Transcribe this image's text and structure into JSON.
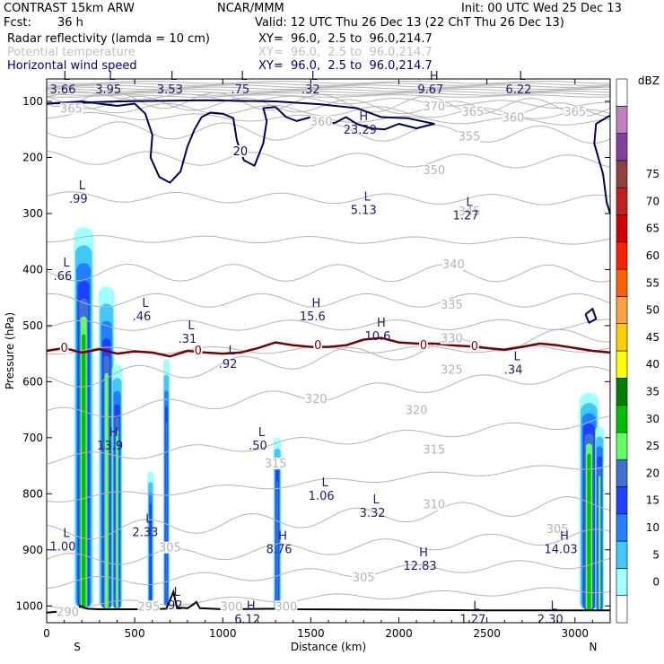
{
  "header": {
    "model": "CONTRAST 15km ARW",
    "org": "NCAR/MMM",
    "init": "Init: 00 UTC Wed 25 Dec 13",
    "fcst_label": "Fcst:",
    "fcst_value": "36 h",
    "valid": "Valid: 12 UTC Thu 26 Dec 13 (22 ChT Thu 26 Dec 13)",
    "fields": [
      {
        "name": "Radar reflectivity (lamda = 10 cm)",
        "xy": "XY=  96.0,  2.5 to  96.0,214.7",
        "color": "#000000"
      },
      {
        "name": "Potential temperature",
        "xy": "XY=  96.0,  2.5 to  96.0,214.7",
        "color": "#c0c0c0"
      },
      {
        "name": "Horizontal wind speed",
        "xy": "XY=  96.0,  2.5 to  96.0,214.7",
        "color": "#000080"
      }
    ]
  },
  "chart_data": {
    "type": "cross-section",
    "xlabel": "Distance (km)",
    "ylabel": "Pressure (hPa)",
    "xlim": [
      0,
      3200
    ],
    "ylim": [
      1030,
      60
    ],
    "x_ticks": [
      0,
      500,
      1000,
      1500,
      2000,
      2500,
      3000
    ],
    "y_ticks": [
      100,
      200,
      300,
      400,
      500,
      600,
      700,
      800,
      900,
      1000
    ],
    "end_labels": {
      "left": "S",
      "right": "N"
    },
    "colorbar": {
      "unit": "dBZ",
      "levels": [
        0,
        5,
        10,
        15,
        20,
        25,
        30,
        35,
        40,
        45,
        50,
        55,
        60,
        65,
        70,
        75
      ],
      "colors": [
        "#ffffff",
        "#a0ffff",
        "#40c8ff",
        "#2080ff",
        "#2040ff",
        "#4070d0",
        "#60ff60",
        "#00c000",
        "#008000",
        "#ffff00",
        "#ffd000",
        "#ffa040",
        "#ff6000",
        "#ff2000",
        "#d00000",
        "#c02020",
        "#904040",
        "#8040a0",
        "#c080c0",
        "#ffffff"
      ]
    },
    "theta_labels": [
      {
        "text": "365",
        "x": 140,
        "p": 112
      },
      {
        "text": "360",
        "x": 1560,
        "p": 135
      },
      {
        "text": "370",
        "x": 2200,
        "p": 108
      },
      {
        "text": "365",
        "x": 2420,
        "p": 118
      },
      {
        "text": "360",
        "x": 2650,
        "p": 128
      },
      {
        "text": "365",
        "x": 3000,
        "p": 118
      },
      {
        "text": "355",
        "x": 2400,
        "p": 162
      },
      {
        "text": "350",
        "x": 2200,
        "p": 222
      },
      {
        "text": "345",
        "x": 2400,
        "p": 295
      },
      {
        "text": "340",
        "x": 2310,
        "p": 390
      },
      {
        "text": "335",
        "x": 2300,
        "p": 462
      },
      {
        "text": "330",
        "x": 2300,
        "p": 522
      },
      {
        "text": "325",
        "x": 2300,
        "p": 578
      },
      {
        "text": "320",
        "x": 1530,
        "p": 630
      },
      {
        "text": "320",
        "x": 2100,
        "p": 650
      },
      {
        "text": "315",
        "x": 2200,
        "p": 720
      },
      {
        "text": "310",
        "x": 2200,
        "p": 818
      },
      {
        "text": "305",
        "x": 1800,
        "p": 948
      },
      {
        "text": "305",
        "x": 2900,
        "p": 862
      },
      {
        "text": "300",
        "x": 1050,
        "p": 1000
      },
      {
        "text": "305",
        "x": 700,
        "p": 895
      },
      {
        "text": "300",
        "x": 1360,
        "p": 1000
      },
      {
        "text": "295",
        "x": 580,
        "p": 1000
      },
      {
        "text": "290",
        "x": 120,
        "p": 1010
      },
      {
        "text": "315",
        "x": 1300,
        "p": 745
      }
    ],
    "wind_labels": [
      {
        "text": "20",
        "x": 1100,
        "p": 188
      }
    ],
    "zero_labels": [
      {
        "text": "0",
        "x": 100,
        "p": 540
      },
      {
        "text": "0",
        "x": 860,
        "p": 545
      },
      {
        "text": "0",
        "x": 1540,
        "p": 535
      },
      {
        "text": "0",
        "x": 2140,
        "p": 535
      },
      {
        "text": "0",
        "x": 2430,
        "p": 537
      }
    ],
    "extrema": [
      {
        "type": "L",
        "value": "3.66",
        "x": 0,
        "p": 65
      },
      {
        "type": "L",
        "value": "3.95",
        "x": 350,
        "p": 65
      },
      {
        "type": "L",
        "value": "3.53",
        "x": 700,
        "p": 65
      },
      {
        "type": "L",
        "value": ".75",
        "x": 1100,
        "p": 65
      },
      {
        "type": "L",
        "value": ".32",
        "x": 1500,
        "p": 65
      },
      {
        "type": "H",
        "value": "9.67",
        "x": 2180,
        "p": 65
      },
      {
        "type": "L",
        "value": "6.22",
        "x": 2680,
        "p": 65
      },
      {
        "type": "H",
        "value": "23.29",
        "x": 1780,
        "p": 137
      },
      {
        "type": "L",
        "value": ".99",
        "x": 180,
        "p": 260
      },
      {
        "type": "L",
        "value": "5.13",
        "x": 1800,
        "p": 280
      },
      {
        "type": "L",
        "value": "1.27",
        "x": 2380,
        "p": 290
      },
      {
        "type": "L",
        "value": ".66",
        "x": 80,
        "p": 398
      },
      {
        "type": "L",
        "value": ".46",
        "x": 540,
        "p": 470
      },
      {
        "type": "H",
        "value": "15.6",
        "x": 1510,
        "p": 470
      },
      {
        "type": "L",
        "value": ".31",
        "x": 800,
        "p": 510
      },
      {
        "type": "H",
        "value": "10.6",
        "x": 1880,
        "p": 505
      },
      {
        "type": "L",
        "value": ".92",
        "x": 1030,
        "p": 555
      },
      {
        "type": "L",
        "value": ".34",
        "x": 2650,
        "p": 565
      },
      {
        "type": "H",
        "value": "13.9",
        "x": 360,
        "p": 700
      },
      {
        "type": "L",
        "value": ".50",
        "x": 1200,
        "p": 700
      },
      {
        "type": "L",
        "value": "1.06",
        "x": 1560,
        "p": 790
      },
      {
        "type": "L",
        "value": "3.32",
        "x": 1850,
        "p": 820
      },
      {
        "type": "L",
        "value": "2.33",
        "x": 560,
        "p": 855
      },
      {
        "type": "L",
        "value": "1.00",
        "x": 90,
        "p": 880
      },
      {
        "type": "H",
        "value": "8.76",
        "x": 1320,
        "p": 885
      },
      {
        "type": "H",
        "value": "14.03",
        "x": 2920,
        "p": 885
      },
      {
        "type": "H",
        "value": "12.83",
        "x": 2120,
        "p": 915
      },
      {
        "type": "L",
        "value": ".92",
        "x": 720,
        "p": 985
      },
      {
        "type": "H",
        "value": "6.12",
        "x": 1140,
        "p": 1010
      },
      {
        "type": "L",
        "value": "1.27",
        "x": 2420,
        "p": 1010
      },
      {
        "type": "L",
        "value": "2.30",
        "x": 2860,
        "p": 1010
      }
    ],
    "zero_line": {
      "x": [
        0,
        100,
        200,
        300,
        400,
        500,
        600,
        700,
        800,
        900,
        1000,
        1100,
        1200,
        1300,
        1400,
        1500,
        1600,
        1700,
        1800,
        1900,
        2000,
        2100,
        2200,
        2300,
        2400,
        2500,
        2600,
        2700,
        2800,
        2900,
        3000,
        3100,
        3200
      ],
      "p": [
        545,
        540,
        548,
        542,
        550,
        546,
        548,
        555,
        545,
        548,
        550,
        548,
        540,
        530,
        535,
        538,
        538,
        535,
        525,
        522,
        530,
        532,
        532,
        535,
        537,
        540,
        543,
        538,
        532,
        535,
        540,
        545,
        548
      ]
    },
    "terrain": {
      "x": [
        0,
        150,
        190,
        230,
        300,
        400,
        600,
        680,
        700,
        720,
        740,
        800,
        830,
        850,
        870,
        1000,
        1300,
        1400,
        2000,
        2500,
        3000,
        3200
      ],
      "p": [
        1012,
        1008,
        1000,
        1005,
        1006,
        1006,
        1006,
        1005,
        990,
        975,
        1003,
        1004,
        998,
        993,
        1004,
        1006,
        1005,
        1006,
        1007,
        1008,
        1008,
        1008
      ]
    },
    "reflectivity_columns": [
      {
        "x": 210,
        "halfwidth": 55,
        "top": 325,
        "bottom": 1005,
        "maxcolor_index": 7
      },
      {
        "x": 340,
        "halfwidth": 45,
        "top": 430,
        "bottom": 1005,
        "maxcolor_index": 6
      },
      {
        "x": 400,
        "halfwidth": 30,
        "top": 570,
        "bottom": 1005,
        "maxcolor_index": 6
      },
      {
        "x": 590,
        "halfwidth": 18,
        "top": 760,
        "bottom": 1005,
        "maxcolor_index": 4
      },
      {
        "x": 680,
        "halfwidth": 18,
        "top": 560,
        "bottom": 1000,
        "maxcolor_index": 5
      },
      {
        "x": 1310,
        "halfwidth": 22,
        "top": 700,
        "bottom": 1005,
        "maxcolor_index": 5
      },
      {
        "x": 3080,
        "halfwidth": 55,
        "top": 620,
        "bottom": 1008,
        "maxcolor_index": 7
      },
      {
        "x": 3140,
        "halfwidth": 25,
        "top": 680,
        "bottom": 1008,
        "maxcolor_index": 6
      }
    ]
  }
}
